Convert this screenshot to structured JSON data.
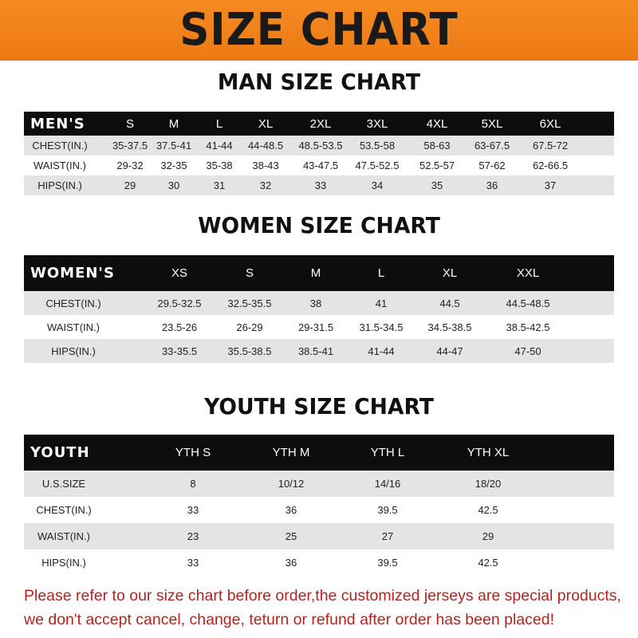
{
  "banner": {
    "title": "SIZE CHART",
    "color": "#f0801a"
  },
  "men": {
    "title": "MAN SIZE CHART",
    "header": [
      "MEN'S",
      "S",
      "M",
      "L",
      "XL",
      "2XL",
      "3XL",
      "4XL",
      "5XL",
      "6XL"
    ],
    "rows": [
      [
        "CHEST(IN.)",
        "35-37.5",
        "37.5-41",
        "41-44",
        "44-48.5",
        "48.5-53.5",
        "53.5-58",
        "58-63",
        "63-67.5",
        "67.5-72"
      ],
      [
        "WAIST(IN.)",
        "29-32",
        "32-35",
        "35-38",
        "38-43",
        "43-47.5",
        "47.5-52.5",
        "52.5-57",
        "57-62",
        "62-66.5"
      ],
      [
        "HIPS(IN.)",
        "29",
        "30",
        "31",
        "32",
        "33",
        "34",
        "35",
        "36",
        "37"
      ]
    ]
  },
  "women": {
    "title": "WOMEN SIZE CHART",
    "header": [
      "WOMEN'S",
      "XS",
      "S",
      "M",
      "L",
      "XL",
      "XXL"
    ],
    "rows": [
      [
        "CHEST(IN.)",
        "29.5-32.5",
        "32.5-35.5",
        "38",
        "41",
        "44.5",
        "44.5-48.5"
      ],
      [
        "WAIST(IN.)",
        "23.5-26",
        "26-29",
        "29-31.5",
        "31.5-34.5",
        "34.5-38.5",
        "38.5-42.5"
      ],
      [
        "HIPS(IN.)",
        "33-35.5",
        "35.5-38.5",
        "38.5-41",
        "41-44",
        "44-47",
        "47-50"
      ]
    ]
  },
  "youth": {
    "title": "YOUTH SIZE CHART",
    "header": [
      "YOUTH",
      "YTH S",
      "YTH M",
      "YTH L",
      "YTH XL"
    ],
    "rows": [
      [
        "U.S.SIZE",
        "8",
        "10/12",
        "14/16",
        "18/20"
      ],
      [
        "CHEST(IN.)",
        "33",
        "36",
        "39.5",
        "42.5"
      ],
      [
        "WAIST(IN.)",
        "23",
        "25",
        "27",
        "29"
      ],
      [
        "HIPS(IN.)",
        "33",
        "36",
        "39.5",
        "42.5"
      ]
    ]
  },
  "notice": {
    "line1": "Please refer to our size chart before order,the customized jerseys are special products,",
    "line2": "we don't accept cancel, change, teturn or refund after order has been placed!",
    "color": "#b3231f"
  }
}
